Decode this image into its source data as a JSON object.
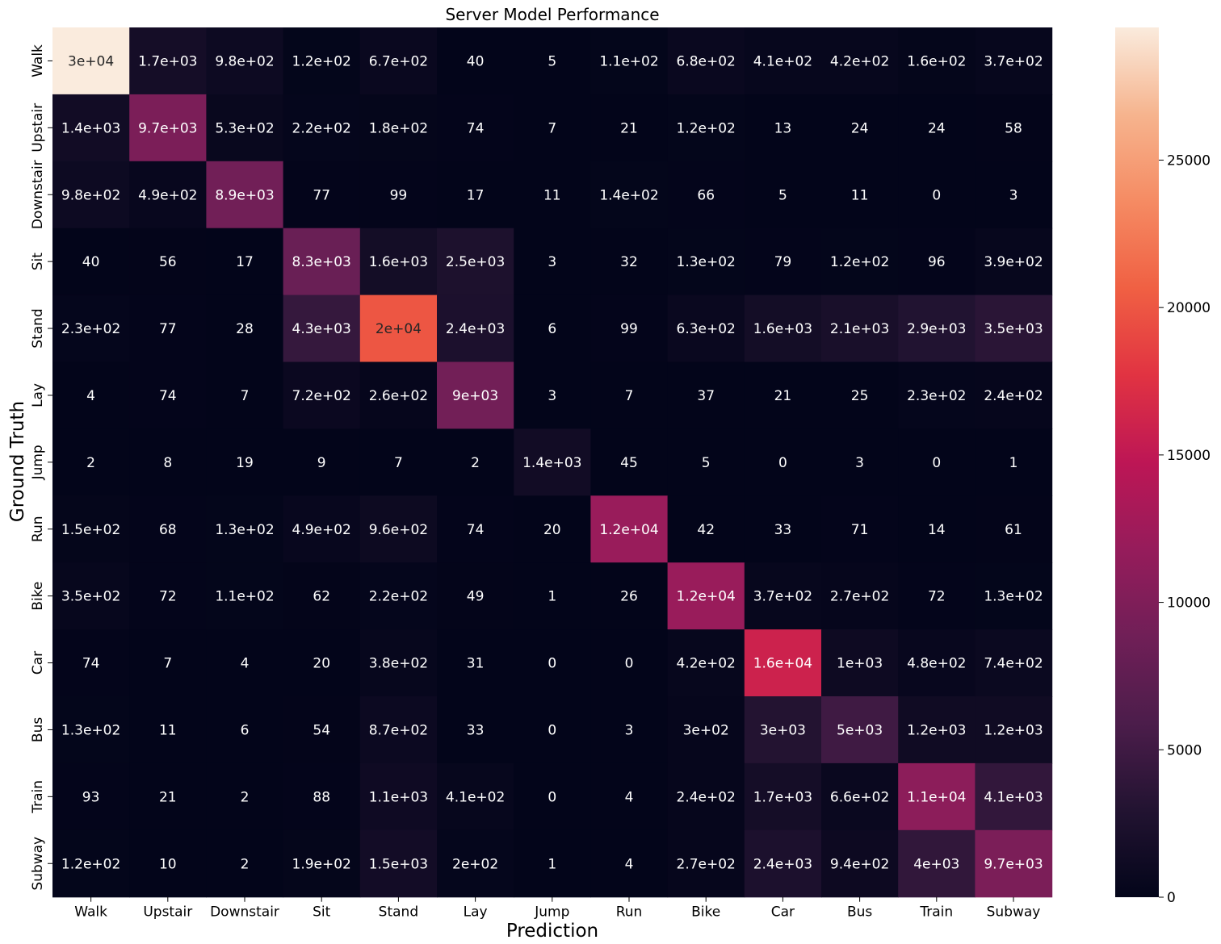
{
  "chart_data": {
    "type": "heatmap",
    "title": "Server Model Performance",
    "xlabel": "Prediction",
    "ylabel": "Ground Truth",
    "categories_x": [
      "Walk",
      "Upstair",
      "Downstair",
      "Sit",
      "Stand",
      "Lay",
      "Jump",
      "Run",
      "Bike",
      "Car",
      "Bus",
      "Train",
      "Subway"
    ],
    "categories_y": [
      "Walk",
      "Upstair",
      "Downstair",
      "Sit",
      "Stand",
      "Lay",
      "Jump",
      "Run",
      "Bike",
      "Car",
      "Bus",
      "Train",
      "Subway"
    ],
    "values": [
      [
        29500,
        1700,
        980,
        120,
        670,
        40,
        5,
        110,
        680,
        410,
        420,
        160,
        370
      ],
      [
        1400,
        9700,
        530,
        220,
        180,
        74,
        7,
        21,
        120,
        13,
        24,
        24,
        58
      ],
      [
        980,
        490,
        8900,
        77,
        99,
        17,
        11,
        140,
        66,
        5,
        11,
        0,
        3
      ],
      [
        40,
        56,
        17,
        8300,
        1600,
        2500,
        3,
        32,
        130,
        79,
        120,
        96,
        390
      ],
      [
        230,
        77,
        28,
        4300,
        20000,
        2400,
        6,
        99,
        630,
        1600,
        2100,
        2900,
        3500
      ],
      [
        4,
        74,
        7,
        720,
        260,
        9000,
        3,
        7,
        37,
        21,
        25,
        230,
        240
      ],
      [
        2,
        8,
        19,
        9,
        7,
        2,
        1400,
        45,
        5,
        0,
        3,
        0,
        1
      ],
      [
        150,
        68,
        130,
        490,
        960,
        74,
        20,
        12000,
        42,
        33,
        71,
        14,
        61
      ],
      [
        350,
        72,
        110,
        62,
        220,
        49,
        1,
        26,
        12000,
        370,
        270,
        72,
        130
      ],
      [
        74,
        7,
        4,
        20,
        380,
        31,
        0,
        0,
        420,
        16000,
        1000,
        480,
        740
      ],
      [
        130,
        11,
        6,
        54,
        870,
        33,
        0,
        3,
        300,
        3000,
        5000,
        1200,
        1200
      ],
      [
        93,
        21,
        2,
        88,
        1100,
        410,
        0,
        4,
        240,
        1700,
        660,
        11000,
        4100
      ],
      [
        120,
        10,
        2,
        190,
        1500,
        200,
        1,
        4,
        270,
        2400,
        940,
        4000,
        9700
      ]
    ],
    "labels": [
      [
        "3e+04",
        "1.7e+03",
        "9.8e+02",
        "1.2e+02",
        "6.7e+02",
        "40",
        "5",
        "1.1e+02",
        "6.8e+02",
        "4.1e+02",
        "4.2e+02",
        "1.6e+02",
        "3.7e+02"
      ],
      [
        "1.4e+03",
        "9.7e+03",
        "5.3e+02",
        "2.2e+02",
        "1.8e+02",
        "74",
        "7",
        "21",
        "1.2e+02",
        "13",
        "24",
        "24",
        "58"
      ],
      [
        "9.8e+02",
        "4.9e+02",
        "8.9e+03",
        "77",
        "99",
        "17",
        "11",
        "1.4e+02",
        "66",
        "5",
        "11",
        "0",
        "3"
      ],
      [
        "40",
        "56",
        "17",
        "8.3e+03",
        "1.6e+03",
        "2.5e+03",
        "3",
        "32",
        "1.3e+02",
        "79",
        "1.2e+02",
        "96",
        "3.9e+02"
      ],
      [
        "2.3e+02",
        "77",
        "28",
        "4.3e+03",
        "2e+04",
        "2.4e+03",
        "6",
        "99",
        "6.3e+02",
        "1.6e+03",
        "2.1e+03",
        "2.9e+03",
        "3.5e+03"
      ],
      [
        "4",
        "74",
        "7",
        "7.2e+02",
        "2.6e+02",
        "9e+03",
        "3",
        "7",
        "37",
        "21",
        "25",
        "2.3e+02",
        "2.4e+02"
      ],
      [
        "2",
        "8",
        "19",
        "9",
        "7",
        "2",
        "1.4e+03",
        "45",
        "5",
        "0",
        "3",
        "0",
        "1"
      ],
      [
        "1.5e+02",
        "68",
        "1.3e+02",
        "4.9e+02",
        "9.6e+02",
        "74",
        "20",
        "1.2e+04",
        "42",
        "33",
        "71",
        "14",
        "61"
      ],
      [
        "3.5e+02",
        "72",
        "1.1e+02",
        "62",
        "2.2e+02",
        "49",
        "1",
        "26",
        "1.2e+04",
        "3.7e+02",
        "2.7e+02",
        "72",
        "1.3e+02"
      ],
      [
        "74",
        "7",
        "4",
        "20",
        "3.8e+02",
        "31",
        "0",
        "0",
        "4.2e+02",
        "1.6e+04",
        "1e+03",
        "4.8e+02",
        "7.4e+02"
      ],
      [
        "1.3e+02",
        "11",
        "6",
        "54",
        "8.7e+02",
        "33",
        "0",
        "3",
        "3e+02",
        "3e+03",
        "5e+03",
        "1.2e+03",
        "1.2e+03"
      ],
      [
        "93",
        "21",
        "2",
        "88",
        "1.1e+03",
        "4.1e+02",
        "0",
        "4",
        "2.4e+02",
        "1.7e+03",
        "6.6e+02",
        "1.1e+04",
        "4.1e+03"
      ],
      [
        "1.2e+02",
        "10",
        "2",
        "1.9e+02",
        "1.5e+03",
        "2e+02",
        "1",
        "4",
        "2.7e+02",
        "2.4e+03",
        "9.4e+02",
        "4e+03",
        "9.7e+03"
      ]
    ],
    "colorbar": {
      "min": 0,
      "max": 29500,
      "ticks": [
        0,
        5000,
        10000,
        15000,
        20000,
        25000
      ],
      "colormap": "rocket"
    },
    "colormap_stops": [
      [
        0.0,
        "#03051a"
      ],
      [
        0.1,
        "#221331"
      ],
      [
        0.2,
        "#4c1d4b"
      ],
      [
        0.3,
        "#701f57"
      ],
      [
        0.4,
        "#961c5b"
      ],
      [
        0.5,
        "#bd1655"
      ],
      [
        0.6,
        "#e13342"
      ],
      [
        0.7,
        "#f06043"
      ],
      [
        0.8,
        "#f58b63"
      ],
      [
        0.9,
        "#f6b48e"
      ],
      [
        1.0,
        "#faebdd"
      ]
    ],
    "text_dark_color": "#262626",
    "text_light_color": "#ffffff"
  }
}
